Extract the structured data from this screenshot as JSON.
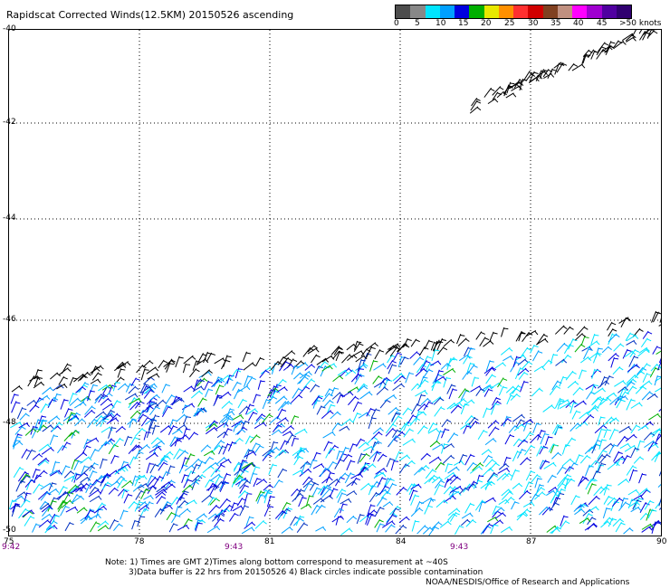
{
  "title": "Rapidscat Corrected Winds(12.5KM) 20150526 ascending",
  "legend": {
    "labels": [
      "0",
      "5",
      "10",
      "15",
      "20",
      "25",
      "30",
      "35",
      "40",
      "45",
      ">50 knots"
    ],
    "colors": [
      "#4d4d4d",
      "#888888",
      "#00e5ff",
      "#00a0ff",
      "#0000e0",
      "#00b000",
      "#e8e800",
      "#ff9000",
      "#ff3030",
      "#d00000",
      "#804020",
      "#c09080",
      "#ff00ff",
      "#a000d0",
      "#5000a0",
      "#300070"
    ]
  },
  "axes": {
    "lat_labels": [
      "-40",
      "-42",
      "-44",
      "-46",
      "-48",
      "-50"
    ],
    "lon_labels": [
      "75",
      "78",
      "81",
      "84",
      "87",
      "90"
    ],
    "time_labels": [
      "9:42",
      "9:43",
      "9:43"
    ]
  },
  "notes": {
    "line1": "Note: 1) Times are GMT 2)Times along bottom correspond to measurement at ~40S",
    "line2": "3)Data buffer is 22 hrs from 20150526 4) Black circles indicate possible contamination",
    "credit": "NOAA/NESDIS/Office of Research and Applications"
  }
}
